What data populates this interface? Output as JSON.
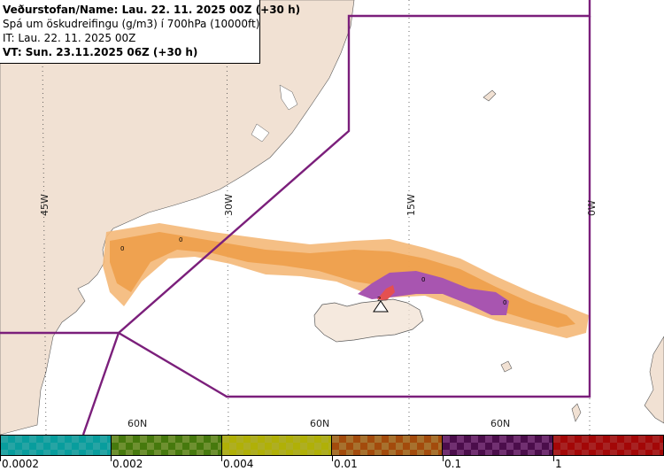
{
  "info": {
    "line1": "Veðurstofan/Name: Lau. 22. 11. 2025 00Z (+30 h)",
    "line2": "Spá um öskudreifingu (g/m3) í 700hPa (10000ft)",
    "line3": "IT: Lau. 22. 11. 2025 00Z",
    "line4": "VT: Sun. 23.11.2025 06Z (+30 h)"
  },
  "axes": {
    "lon": [
      "45W",
      "30W",
      "15W",
      "0W"
    ],
    "lat": [
      "60N",
      "60N",
      "60N"
    ]
  },
  "contours": [
    "0",
    "0",
    "0",
    "2",
    "0"
  ],
  "legend": {
    "labels": [
      "0.0002",
      "0.002",
      "0.004",
      "0.01",
      "0.1",
      "1"
    ],
    "colors": [
      "#2ec8c8",
      "#86b03a",
      "#d4d42a",
      "#cc8a38",
      "#8a3a8a",
      "#cc2a2a"
    ]
  },
  "colors": {
    "land": "#f1e1d3",
    "ocean": "#ffffff",
    "fir_boundary": "#7b1f7b",
    "ash_low": "#f4b878",
    "ash_mid": "#ee9e4a",
    "ash_high": "#a855b0",
    "ash_peak": "#e45050"
  }
}
